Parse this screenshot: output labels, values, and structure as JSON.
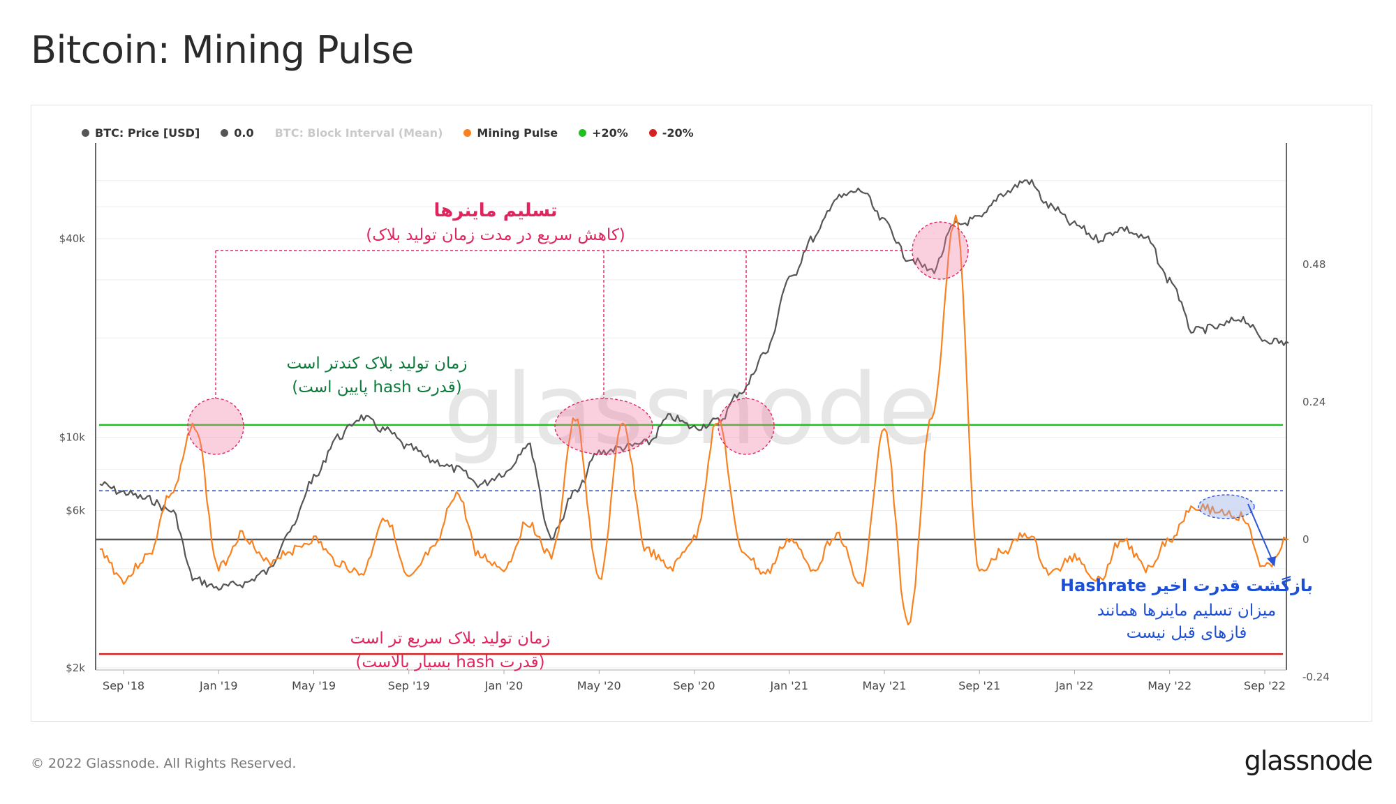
{
  "title": "Bitcoin: Mining Pulse",
  "footer": {
    "copyright": "© 2022 Glassnode. All Rights Reserved.",
    "logo": "glassnode"
  },
  "watermark": "glassnode",
  "legend": [
    {
      "label": "BTC: Price [USD]",
      "color": "#555555",
      "muted": false
    },
    {
      "label": "0.0",
      "color": "#555555",
      "muted": false
    },
    {
      "label": "BTC: Block Interval (Mean)",
      "color": "#d8d8d8",
      "muted": true
    },
    {
      "label": "Mining Pulse",
      "color": "#f7821f",
      "muted": false
    },
    {
      "label": "+20%",
      "color": "#1ec21e",
      "muted": false
    },
    {
      "label": "-20%",
      "color": "#d42222",
      "muted": false
    }
  ],
  "annotations": {
    "capitulation_title": "تسلیم ماینرها",
    "capitulation_sub": "(کاهش سریع در مدت زمان تولید بلاک)",
    "slow_line1": "زمان تولید بلاک کندتر است",
    "slow_line2": "(قدرت hash پایین است)",
    "fast_line1": "زمان تولید بلاک سریع تر است",
    "fast_line2": "(قدرت hash بسیار بالاست)",
    "recent_title": "بازگشت قدرت اخیر Hashrate",
    "recent_line1": "میزان تسلیم ماینرها همانند",
    "recent_line2": "فازهای قبل نیست"
  },
  "chart_data": {
    "type": "line",
    "x_ticks": [
      "Sep '18",
      "Jan '19",
      "May '19",
      "Sep '19",
      "Jan '20",
      "May '20",
      "Sep '20",
      "Jan '21",
      "May '21",
      "Sep '21",
      "Jan '22",
      "May '22",
      "Sep '22"
    ],
    "y_left": {
      "scale": "log",
      "ticks": [
        "$2k",
        "$6k",
        "$10k",
        "$40k"
      ],
      "tick_values": [
        2000,
        6000,
        10000,
        40000
      ]
    },
    "y_right": {
      "ticks": [
        "-0.24",
        "0",
        "0.24",
        "0.48"
      ],
      "tick_values": [
        -0.24,
        0,
        0.24,
        0.48
      ],
      "range": [
        -0.24,
        0.56
      ]
    },
    "reference_lines": {
      "zero": 0.0,
      "plus20": 0.2,
      "minus20": -0.2,
      "recent_peak_dotted": 0.085
    },
    "series": [
      {
        "name": "BTC: Price [USD]",
        "axis": "left",
        "color": "#555555",
        "x": [
          "2018-08",
          "2018-09",
          "2018-10",
          "2018-11",
          "2018-12",
          "2019-01",
          "2019-02",
          "2019-03",
          "2019-04",
          "2019-05",
          "2019-06",
          "2019-07",
          "2019-08",
          "2019-09",
          "2019-10",
          "2019-11",
          "2019-12",
          "2020-01",
          "2020-02",
          "2020-03",
          "2020-04",
          "2020-05",
          "2020-06",
          "2020-07",
          "2020-08",
          "2020-09",
          "2020-10",
          "2020-11",
          "2020-12",
          "2021-01",
          "2021-02",
          "2021-03",
          "2021-04",
          "2021-05",
          "2021-06",
          "2021-07",
          "2021-08",
          "2021-09",
          "2021-10",
          "2021-11",
          "2021-12",
          "2022-01",
          "2022-02",
          "2022-03",
          "2022-04",
          "2022-05",
          "2022-06",
          "2022-07",
          "2022-08",
          "2022-09",
          "2022-10"
        ],
        "values": [
          7200,
          6800,
          6500,
          6000,
          3700,
          3500,
          3600,
          3900,
          5200,
          7500,
          10000,
          11500,
          10500,
          9300,
          8500,
          8000,
          7200,
          7800,
          9500,
          5000,
          6800,
          9000,
          9300,
          9600,
          11500,
          10700,
          11200,
          13800,
          18000,
          30000,
          40000,
          53000,
          56000,
          45000,
          35000,
          32000,
          44000,
          46000,
          55000,
          60000,
          50000,
          44000,
          40000,
          43000,
          40000,
          30000,
          21000,
          21500,
          23000,
          19800,
          19300
        ]
      },
      {
        "name": "Mining Pulse",
        "axis": "right",
        "color": "#f7821f",
        "x": [
          "2018-08",
          "2018-09",
          "2018-10",
          "2018-11",
          "2018-12",
          "2019-01",
          "2019-02",
          "2019-03",
          "2019-04",
          "2019-05",
          "2019-06",
          "2019-07",
          "2019-08",
          "2019-09",
          "2019-10",
          "2019-11",
          "2019-12",
          "2020-01",
          "2020-02",
          "2020-03",
          "2020-04",
          "2020-05",
          "2020-06",
          "2020-07",
          "2020-08",
          "2020-09",
          "2020-10",
          "2020-11",
          "2020-12",
          "2021-01",
          "2021-02",
          "2021-03",
          "2021-04",
          "2021-05",
          "2021-06",
          "2021-07",
          "2021-08",
          "2021-09",
          "2021-10",
          "2021-11",
          "2021-12",
          "2022-01",
          "2022-02",
          "2022-03",
          "2022-04",
          "2022-05",
          "2022-06",
          "2022-07",
          "2022-08",
          "2022-09",
          "2022-10"
        ],
        "values": [
          -0.02,
          -0.07,
          -0.03,
          0.08,
          0.2,
          -0.05,
          0.01,
          -0.04,
          -0.02,
          0.0,
          -0.04,
          -0.06,
          0.04,
          -0.07,
          -0.02,
          0.08,
          -0.03,
          -0.05,
          0.03,
          -0.03,
          0.21,
          -0.07,
          0.2,
          -0.02,
          -0.05,
          0.0,
          0.21,
          -0.02,
          -0.06,
          0.0,
          -0.05,
          0.01,
          -0.08,
          0.19,
          -0.15,
          0.22,
          0.56,
          -0.06,
          -0.02,
          0.01,
          -0.06,
          -0.03,
          -0.07,
          0.0,
          -0.05,
          0.0,
          0.06,
          0.05,
          0.04,
          -0.05,
          0.0
        ]
      }
    ]
  }
}
